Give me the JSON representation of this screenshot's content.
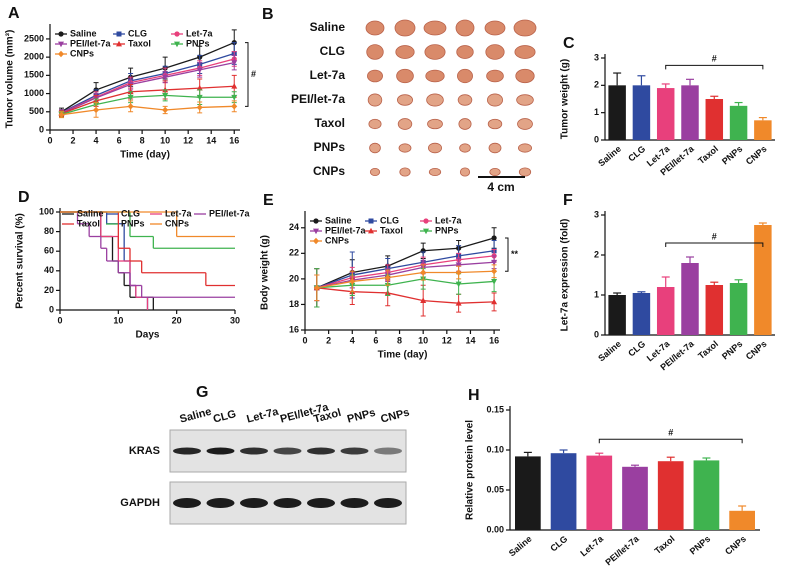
{
  "chart_data": [
    {
      "panel": "A",
      "type": "line",
      "x_label": "Time (day)",
      "y_label": "Tumor volume (mm³)",
      "x": [
        1,
        4,
        7,
        10,
        13,
        16
      ],
      "xlim": [
        0,
        16.5
      ],
      "xticks": [
        0,
        2,
        4,
        6,
        8,
        10,
        12,
        14,
        16
      ],
      "ylim": [
        0,
        2800
      ],
      "yticks": [
        0,
        500,
        1000,
        1500,
        2000,
        2500
      ],
      "series": [
        {
          "name": "Saline",
          "color": "#1a1a1a",
          "values": [
            500,
            1100,
            1450,
            1700,
            2000,
            2400
          ],
          "errors": [
            100,
            200,
            250,
            300,
            300,
            350
          ]
        },
        {
          "name": "CLG",
          "color": "#2f4aa0",
          "values": [
            480,
            950,
            1350,
            1550,
            1800,
            2100
          ],
          "errors": [
            80,
            150,
            200,
            200,
            250,
            300
          ]
        },
        {
          "name": "Let-7a",
          "color": "#e8407c",
          "values": [
            470,
            900,
            1300,
            1500,
            1700,
            1950
          ],
          "errors": [
            80,
            150,
            150,
            200,
            200,
            200
          ]
        },
        {
          "name": "PEI/let-7a",
          "color": "#9a3fa0",
          "values": [
            460,
            880,
            1250,
            1450,
            1650,
            1850
          ],
          "errors": [
            80,
            120,
            150,
            150,
            200,
            200
          ]
        },
        {
          "name": "Taxol",
          "color": "#e03030",
          "values": [
            450,
            800,
            1050,
            1100,
            1150,
            1200
          ],
          "errors": [
            80,
            150,
            200,
            250,
            250,
            300
          ]
        },
        {
          "name": "PNPs",
          "color": "#3fb34f",
          "values": [
            430,
            700,
            900,
            950,
            900,
            900
          ],
          "errors": [
            80,
            150,
            150,
            150,
            200,
            150
          ]
        },
        {
          "name": "CNPs",
          "color": "#f0892a",
          "values": [
            420,
            550,
            650,
            550,
            620,
            650
          ],
          "errors": [
            80,
            200,
            150,
            100,
            150,
            150
          ]
        }
      ],
      "annotation": "#"
    },
    {
      "panel": "C",
      "type": "bar",
      "y_label": "Tumor weight (g)",
      "categories": [
        "Saline",
        "CLG",
        "Let-7a",
        "PEI/let-7a",
        "Taxol",
        "PNPs",
        "CNPs"
      ],
      "colors": [
        "#1a1a1a",
        "#2f4aa0",
        "#e8407c",
        "#9a3fa0",
        "#e03030",
        "#3fb34f",
        "#f0892a"
      ],
      "values": [
        2.0,
        2.0,
        1.9,
        2.0,
        1.5,
        1.25,
        0.72
      ],
      "errors": [
        0.45,
        0.35,
        0.15,
        0.22,
        0.1,
        0.12,
        0.1
      ],
      "ylim": [
        0,
        3
      ],
      "yticks": [
        0,
        1,
        2,
        3
      ],
      "annotation": "#"
    },
    {
      "panel": "D",
      "type": "step",
      "x_label": "Days",
      "y_label": "Percent survival (%)",
      "xlim": [
        0,
        30
      ],
      "xticks": [
        0,
        10,
        20,
        30
      ],
      "ylim": [
        0,
        100
      ],
      "yticks": [
        0,
        20,
        40,
        60,
        80,
        100
      ],
      "series": [
        {
          "name": "Saline",
          "color": "#1a1a1a",
          "x": [
            0,
            7,
            9,
            10,
            11,
            12,
            16
          ],
          "values": [
            100,
            75,
            50,
            38,
            25,
            13,
            0
          ]
        },
        {
          "name": "CLG",
          "color": "#2f4aa0",
          "x": [
            0,
            8,
            11,
            12,
            13,
            15
          ],
          "values": [
            100,
            88,
            50,
            25,
            13,
            0
          ]
        },
        {
          "name": "Let-7a",
          "color": "#e8407c",
          "x": [
            0,
            7,
            10,
            12,
            13,
            15
          ],
          "values": [
            100,
            75,
            50,
            25,
            13,
            0
          ]
        },
        {
          "name": "PEI/let-7a",
          "color": "#9a3fa0",
          "x": [
            0,
            3,
            5,
            7,
            8,
            10,
            12,
            14,
            30
          ],
          "values": [
            100,
            88,
            75,
            63,
            50,
            38,
            25,
            13,
            13
          ]
        },
        {
          "name": "Taxol",
          "color": "#e03030",
          "x": [
            0,
            10,
            12,
            14,
            25,
            30
          ],
          "values": [
            100,
            63,
            50,
            38,
            25,
            25
          ]
        },
        {
          "name": "PNPs",
          "color": "#3fb34f",
          "x": [
            0,
            12,
            16,
            30
          ],
          "values": [
            100,
            75,
            63,
            63
          ]
        },
        {
          "name": "CNPs",
          "color": "#f0892a",
          "x": [
            0,
            20,
            30
          ],
          "values": [
            100,
            75,
            75
          ]
        }
      ]
    },
    {
      "panel": "E",
      "type": "line",
      "x_label": "Time (day)",
      "y_label": "Body weight (g)",
      "x": [
        1,
        4,
        7,
        10,
        13,
        16
      ],
      "xlim": [
        0,
        16.5
      ],
      "xticks": [
        0,
        2,
        4,
        6,
        8,
        10,
        12,
        14,
        16
      ],
      "ylim": [
        16,
        25
      ],
      "yticks": [
        16,
        18,
        20,
        22,
        24
      ],
      "series": [
        {
          "name": "Saline",
          "color": "#1a1a1a",
          "values": [
            19.3,
            20.5,
            21,
            22.2,
            22.4,
            23.2
          ],
          "errors": [
            1.5,
            1,
            0.8,
            0.6,
            0.6,
            0.8
          ]
        },
        {
          "name": "CLG",
          "color": "#2f4aa0",
          "values": [
            19.3,
            20.3,
            20.8,
            21.3,
            21.8,
            22.2
          ],
          "errors": [
            1.5,
            1.8,
            0.8,
            0.8,
            0.8,
            0.8
          ]
        },
        {
          "name": "Let-7a",
          "color": "#e8407c",
          "values": [
            19.3,
            20.1,
            20.5,
            21.1,
            21.5,
            21.8
          ],
          "errors": [
            1,
            0.8,
            0.6,
            0.6,
            0.5,
            0.5
          ]
        },
        {
          "name": "PEI/let-7a",
          "color": "#9a3fa0",
          "values": [
            19.3,
            19.9,
            20.3,
            20.9,
            21.1,
            21.3
          ],
          "errors": [
            1,
            0.6,
            0.5,
            0.5,
            0.5,
            0.5
          ]
        },
        {
          "name": "Taxol",
          "color": "#e03030",
          "values": [
            19.3,
            19.0,
            18.9,
            18.3,
            18.1,
            18.2
          ],
          "errors": [
            1.5,
            1,
            1,
            1.2,
            0.7,
            0.7
          ]
        },
        {
          "name": "PNPs",
          "color": "#3fb34f",
          "values": [
            19.3,
            19.5,
            19.5,
            20,
            19.6,
            19.8
          ],
          "errors": [
            1.5,
            0.8,
            0.8,
            0.8,
            0.8,
            0.8
          ]
        },
        {
          "name": "CNPs",
          "color": "#f0892a",
          "values": [
            19.3,
            19.8,
            20.1,
            20.5,
            20.5,
            20.6
          ],
          "errors": [
            1,
            0.8,
            0.6,
            0.6,
            0.5,
            0.5
          ]
        }
      ],
      "annotation": "**"
    },
    {
      "panel": "F",
      "type": "bar",
      "y_label": "Let-7a expression (fold)",
      "categories": [
        "Saline",
        "CLG",
        "Let-7a",
        "PEI/let-7a",
        "Taxol",
        "PNPs",
        "CNPs"
      ],
      "colors": [
        "#1a1a1a",
        "#2f4aa0",
        "#e8407c",
        "#9a3fa0",
        "#e03030",
        "#3fb34f",
        "#f0892a"
      ],
      "values": [
        1.0,
        1.05,
        1.2,
        1.8,
        1.25,
        1.3,
        2.75
      ],
      "errors": [
        0.05,
        0.03,
        0.25,
        0.15,
        0.07,
        0.08,
        0.05
      ],
      "ylim": [
        0,
        3
      ],
      "yticks": [
        0,
        1,
        2,
        3
      ],
      "annotation": "#"
    },
    {
      "panel": "H",
      "type": "bar",
      "y_label": "Relative protein level",
      "categories": [
        "Saline",
        "CLG",
        "Let-7a",
        "PEI/let-7a",
        "Taxol",
        "PNPs",
        "CNPs"
      ],
      "colors": [
        "#1a1a1a",
        "#2f4aa0",
        "#e8407c",
        "#9a3fa0",
        "#e03030",
        "#3fb34f",
        "#f0892a"
      ],
      "values": [
        0.092,
        0.096,
        0.093,
        0.079,
        0.086,
        0.087,
        0.024
      ],
      "errors": [
        0.005,
        0.004,
        0.003,
        0.002,
        0.005,
        0.003,
        0.006
      ],
      "ylim": [
        0,
        0.15
      ],
      "yticks": [
        {
          "value": 0,
          "label": "0.00"
        },
        {
          "value": 0.05,
          "label": "0.05"
        },
        {
          "value": 0.1,
          "label": "0.10"
        },
        {
          "value": 0.15,
          "label": "0.15"
        }
      ],
      "annotation": "#"
    }
  ],
  "photo_panel": {
    "panel": "B",
    "rows": [
      "Saline",
      "CLG",
      "Let-7a",
      "PEI/let-7a",
      "Taxol",
      "PNPs",
      "CNPs"
    ],
    "scale_bar": "4 cm"
  },
  "blot_panel": {
    "panel": "G",
    "lanes": [
      "Saline",
      "CLG",
      "Let-7a",
      "PEI/let-7a",
      "Taxol",
      "PNPs",
      "CNPs"
    ],
    "rows": [
      "KRAS",
      "GAPDH"
    ]
  }
}
